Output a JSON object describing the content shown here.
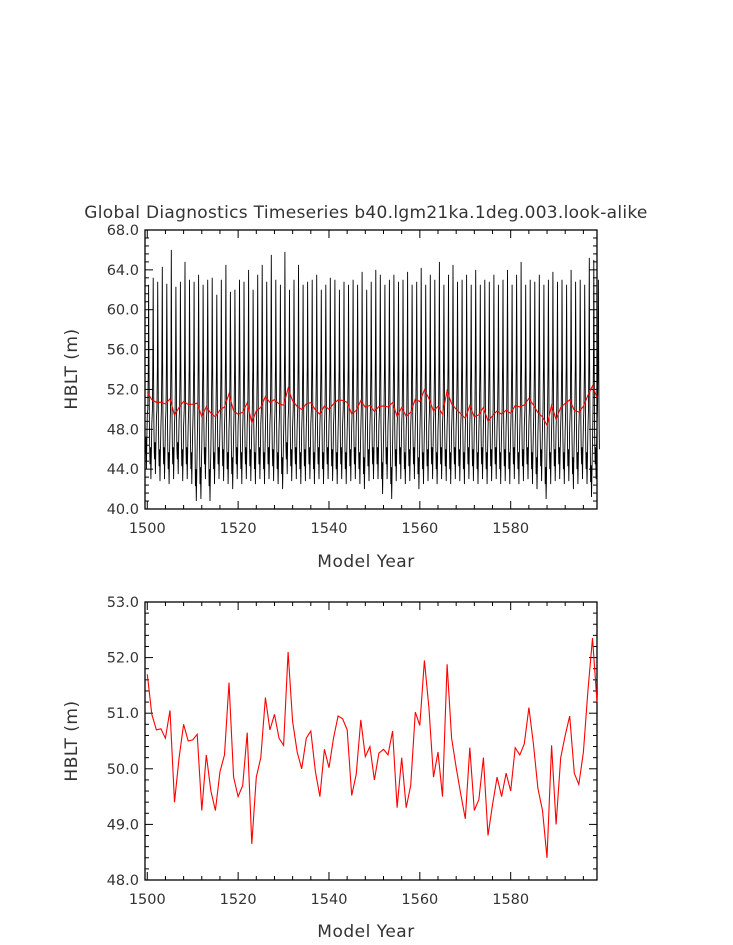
{
  "chart_data": [
    {
      "type": "line",
      "title": "Global Diagnostics Timeseries b40.lgm21ka.1deg.003.look-alike",
      "xlabel": "Model Year",
      "ylabel": "HBLT (m)",
      "xlim": [
        1499.5,
        1599
      ],
      "ylim": [
        40,
        68
      ],
      "x_ticks": [
        "1500",
        "1520",
        "1540",
        "1560",
        "1580"
      ],
      "y_ticks": [
        "40.0",
        "44.0",
        "48.0",
        "52.0",
        "56.0",
        "60.0",
        "64.0",
        "68.0"
      ],
      "series": [
        {
          "color": "#000000",
          "description_hidden": true,
          "monthly_peak_max": [
            62.5,
            63.2,
            62.8,
            64.3,
            62.6,
            66.0,
            62.3,
            62.8,
            64.8,
            63.0,
            62.8,
            63.5,
            62.5,
            63.0,
            63.2,
            61.5,
            63.0,
            64.5,
            61.8,
            62.0,
            63.0,
            62.8,
            64.0,
            62.0,
            63.5,
            64.5,
            62.8,
            65.5,
            63.0,
            62.5,
            65.8,
            62.0,
            63.0,
            64.5,
            62.5,
            62.8,
            63.0,
            63.5,
            62.0,
            62.5,
            63.2,
            63.0,
            62.0,
            62.8,
            62.5,
            63.0,
            62.5,
            63.8,
            62.0,
            62.8,
            64.0,
            63.5,
            62.5,
            63.0,
            63.5,
            62.8,
            63.0,
            63.8,
            62.5,
            62.8,
            64.2,
            62.5,
            63.5,
            63.0,
            64.8,
            62.5,
            63.5,
            64.5,
            62.8,
            63.0,
            63.5,
            62.5,
            64.0,
            62.5,
            63.0,
            62.8,
            63.5,
            62.5,
            63.0,
            64.0,
            62.5,
            63.5,
            64.8,
            62.5,
            63.0,
            62.8,
            63.5,
            62.5,
            63.0,
            63.8,
            62.8,
            63.0,
            62.5,
            64.0,
            62.8,
            63.0,
            62.5,
            65.2,
            65.0,
            63.0
          ],
          "trough_min": [
            44.0,
            43.0,
            43.5,
            42.8,
            43.0,
            42.5,
            43.0,
            43.5,
            42.8,
            43.0,
            42.5,
            40.8,
            41.0,
            43.0,
            40.8,
            42.5,
            43.0,
            42.8,
            42.5,
            42.0,
            43.0,
            42.5,
            43.0,
            42.8,
            42.5,
            43.0,
            42.5,
            43.0,
            42.8,
            42.5,
            42.0,
            43.5,
            42.8,
            43.0,
            42.5,
            42.8,
            43.0,
            42.5,
            43.0,
            42.5,
            43.0,
            42.8,
            42.5,
            43.0,
            42.5,
            42.8,
            43.0,
            42.5,
            42.0,
            42.8,
            43.0,
            43.0,
            41.5,
            43.0,
            41.0,
            42.8,
            43.0,
            42.5,
            42.8,
            43.0,
            42.0,
            42.5,
            42.8,
            43.0,
            42.5,
            43.0,
            42.8,
            42.5,
            43.0,
            42.8,
            42.5,
            43.0,
            42.8,
            42.5,
            43.0,
            42.5,
            42.8,
            43.0,
            42.5,
            42.8,
            42.5,
            43.0,
            42.5,
            42.8,
            43.0,
            42.5,
            42.0,
            42.8,
            41.0,
            42.5,
            42.8,
            43.0,
            42.5,
            42.8,
            42.0,
            42.5,
            43.0,
            42.5,
            41.2,
            43.0
          ]
        },
        {
          "color": "#ff0000",
          "x_start": 1500,
          "x_step": 1,
          "values": [
            51.7,
            50.98,
            50.7,
            50.72,
            50.55,
            51.05,
            49.4,
            50.2,
            50.8,
            50.5,
            50.52,
            50.62,
            49.25,
            50.25,
            49.6,
            49.25,
            49.95,
            50.25,
            51.55,
            49.85,
            49.5,
            49.7,
            50.65,
            48.65,
            49.85,
            50.2,
            51.28,
            50.7,
            50.98,
            50.55,
            50.42,
            52.1,
            50.85,
            50.3,
            50.0,
            50.55,
            50.68,
            49.95,
            49.5,
            50.35,
            50.02,
            50.55,
            50.95,
            50.9,
            50.7,
            49.52,
            49.9,
            50.88,
            50.22,
            50.4,
            49.8,
            50.28,
            50.35,
            50.25,
            50.68,
            49.3,
            50.2,
            49.3,
            49.7,
            51.02,
            50.78,
            51.95,
            51.1,
            49.85,
            50.3,
            49.5,
            51.88,
            50.55,
            50.02,
            49.55,
            49.1,
            50.38,
            49.25,
            49.45,
            50.2,
            48.8,
            49.35,
            49.85,
            49.5,
            49.92,
            49.6,
            50.38,
            50.25,
            50.45,
            51.1,
            50.45,
            49.65,
            49.25,
            48.4,
            50.42,
            49.0,
            50.2,
            50.6,
            50.95,
            49.92,
            49.72,
            50.3,
            51.4,
            52.35,
            51.2
          ]
        }
      ]
    },
    {
      "type": "line",
      "xlabel": "Model Year",
      "ylabel": "HBLT (m)",
      "xlim": [
        1499.5,
        1599
      ],
      "ylim": [
        48,
        53
      ],
      "x_ticks": [
        "1500",
        "1520",
        "1540",
        "1560",
        "1580"
      ],
      "y_ticks": [
        "48.0",
        "49.0",
        "50.0",
        "51.0",
        "52.0",
        "53.0"
      ],
      "series": [
        {
          "color": "#ff0000",
          "x_start": 1500,
          "x_step": 1,
          "values": [
            51.7,
            50.98,
            50.7,
            50.72,
            50.55,
            51.05,
            49.4,
            50.2,
            50.8,
            50.5,
            50.52,
            50.62,
            49.25,
            50.25,
            49.6,
            49.25,
            49.95,
            50.25,
            51.55,
            49.85,
            49.5,
            49.7,
            50.65,
            48.65,
            49.85,
            50.2,
            51.28,
            50.7,
            50.98,
            50.55,
            50.42,
            52.1,
            50.85,
            50.3,
            50.0,
            50.55,
            50.68,
            49.95,
            49.5,
            50.35,
            50.02,
            50.55,
            50.95,
            50.9,
            50.7,
            49.52,
            49.9,
            50.88,
            50.22,
            50.4,
            49.8,
            50.28,
            50.35,
            50.25,
            50.68,
            49.3,
            50.2,
            49.3,
            49.7,
            51.02,
            50.78,
            51.95,
            51.1,
            49.85,
            50.3,
            49.5,
            51.88,
            50.55,
            50.02,
            49.55,
            49.1,
            50.38,
            49.25,
            49.45,
            50.2,
            48.8,
            49.35,
            49.85,
            49.5,
            49.92,
            49.6,
            50.38,
            50.25,
            50.45,
            51.1,
            50.45,
            49.65,
            49.25,
            48.4,
            50.42,
            49.0,
            50.2,
            50.6,
            50.95,
            49.92,
            49.72,
            50.3,
            51.4,
            52.35,
            51.2
          ]
        }
      ]
    }
  ]
}
